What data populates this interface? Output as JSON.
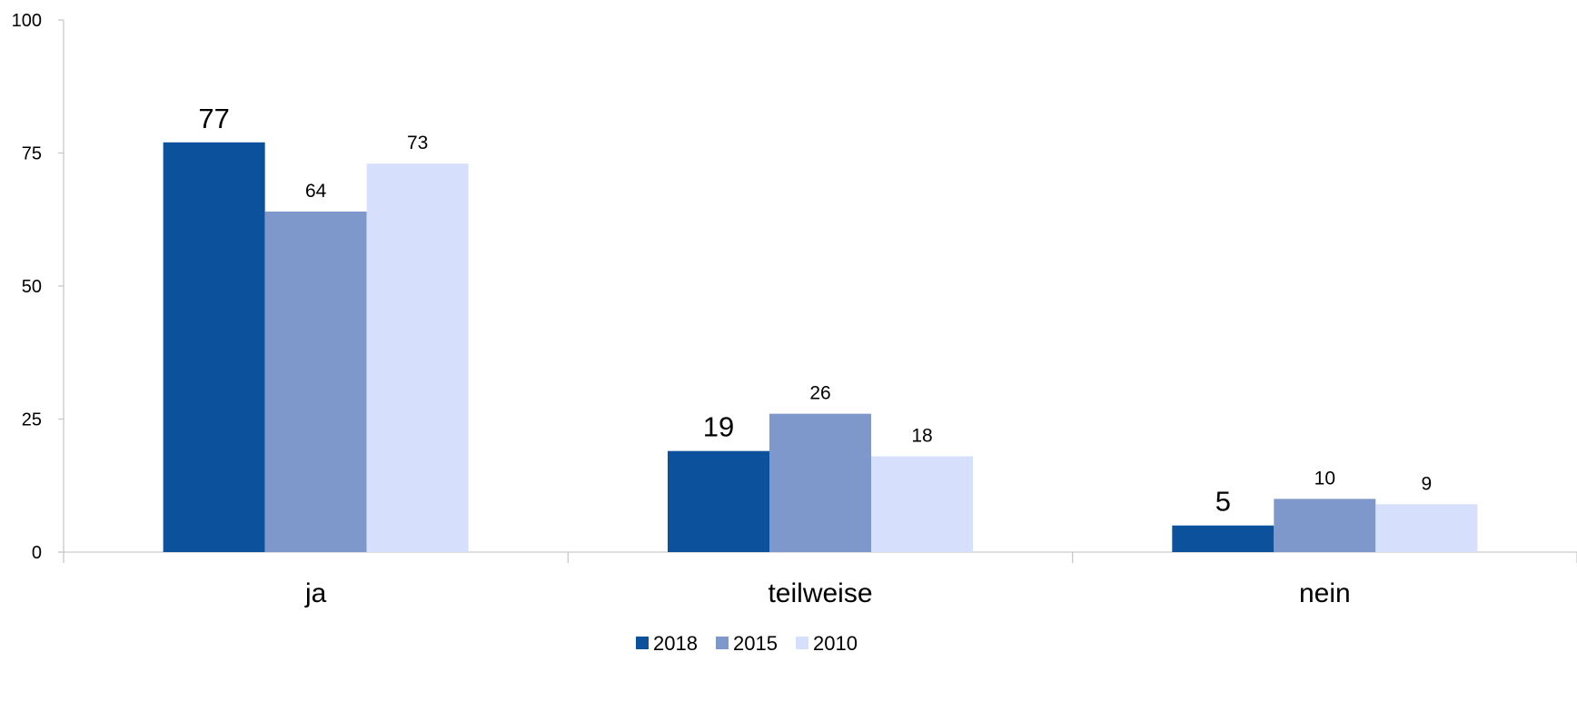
{
  "chart_data": {
    "type": "bar",
    "title": "",
    "xlabel": "",
    "ylabel": "",
    "categories": [
      "ja",
      "teilweise",
      "nein"
    ],
    "series": [
      {
        "name": "2018",
        "values": [
          77,
          19,
          5
        ],
        "color": "#0b519b"
      },
      {
        "name": "2015",
        "values": [
          64,
          26,
          10
        ],
        "color": "#7f98cc"
      },
      {
        "name": "2010",
        "values": [
          73,
          18,
          9
        ],
        "color": "#d6dffb"
      }
    ],
    "ylim": [
      0,
      100
    ],
    "yticks": [
      "0",
      "25",
      "50",
      "75",
      "100"
    ],
    "grid": false,
    "legend_position": "bottom",
    "data_labels": true
  }
}
